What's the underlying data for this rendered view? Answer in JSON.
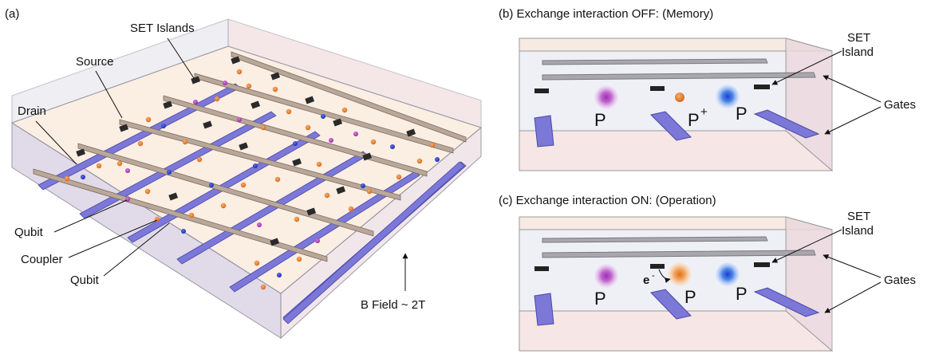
{
  "panel_a": {
    "label": "(a)",
    "set_islands": "SET Islands",
    "source": "Source",
    "drain": "Drain",
    "qubit_1": "Qubit",
    "coupler": "Coupler",
    "qubit_2": "Qubit",
    "b_field": "B Field ~ 2T"
  },
  "panel_b": {
    "title": "(b) Exchange interaction OFF: (Memory)",
    "set_island_line1": "SET",
    "set_island_line2": "Island",
    "gates": "Gates",
    "p_left": "P",
    "p_plus": "P",
    "p_plus_sup": "+",
    "p_right": "P"
  },
  "panel_c": {
    "title": "(c) Exchange interaction ON: (Operation)",
    "set_island_line1": "SET",
    "set_island_line2": "Island",
    "gates": "Gates",
    "p_left": "P",
    "electron": "e",
    "electron_sup": "-",
    "p_mid": "P",
    "p_right": "P"
  },
  "colors": {
    "qubit_purple": "#b040b8",
    "qubit_blue": "#1a3fc8",
    "coupler_orange": "#e87a1a",
    "gate_blue": "#7a78d8",
    "metal_tan": "#b9a89a",
    "island_dark": "#2a2a2a"
  }
}
